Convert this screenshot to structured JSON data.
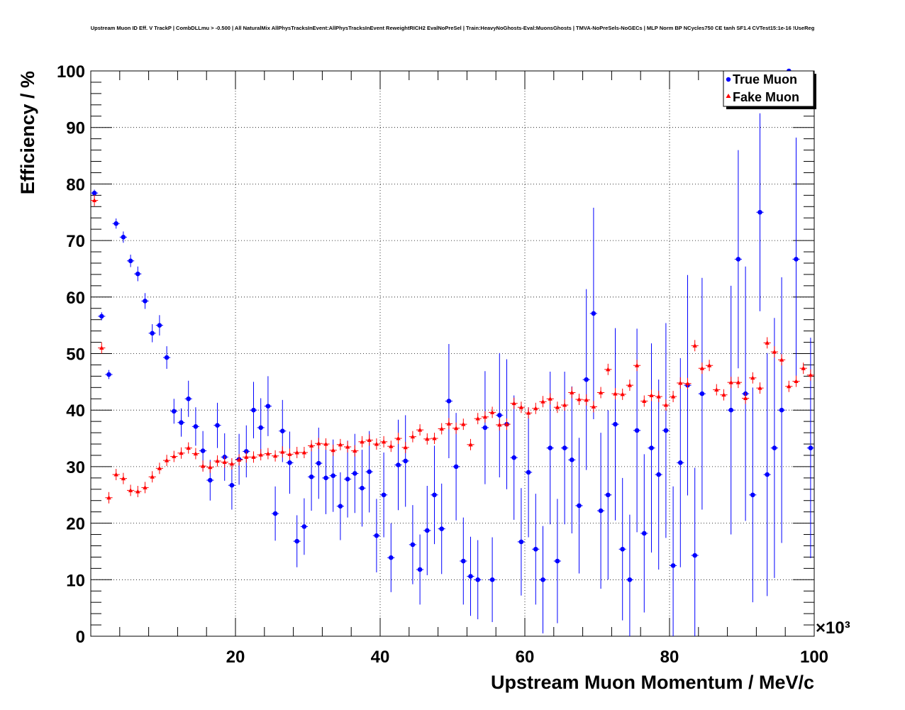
{
  "colors": {
    "true_muon": "#0000ff",
    "fake_muon": "#ff0000",
    "background": "#ffffff",
    "axis": "#000000"
  },
  "chart_data": {
    "type": "scatter",
    "title": "Upstream Muon ID Eff. V TrackP | CombDLLmu > -0.500 | All NaturalMix AllPhysTracksInEvent:AllPhysTracksInEvent ReweightRICH2 EvalNoPreSel | Train:HeavyNoGhosts-Eval:MuonsGhosts | TMVA-NoPreSels-NoGECs | MLP Norm BP NCycles750 CE tanh SF1.4 CVTest15:1e-16 !UseReg",
    "xlabel": "Upstream Muon Momentum / MeV/c",
    "ylabel": "Efficiency / %",
    "x_multiplier": "×10³",
    "xlim": [
      0,
      100
    ],
    "ylim": [
      0,
      100
    ],
    "x_ticks": [
      20,
      40,
      60,
      80,
      100
    ],
    "y_ticks": [
      0,
      10,
      20,
      30,
      40,
      50,
      60,
      70,
      80,
      90,
      100
    ],
    "grid": true,
    "legend_position": "top-right",
    "series": [
      {
        "name": "True Muon",
        "marker": "circle",
        "color": "#0000ff",
        "x": [
          0.5,
          1.5,
          2.5,
          3.5,
          4.5,
          5.5,
          6.5,
          7.5,
          8.5,
          9.5,
          10.5,
          11.5,
          12.5,
          13.5,
          14.5,
          15.5,
          16.5,
          17.5,
          18.5,
          19.5,
          20.5,
          21.5,
          22.5,
          23.5,
          24.5,
          25.5,
          26.5,
          27.5,
          28.5,
          29.5,
          30.5,
          31.5,
          32.5,
          33.5,
          34.5,
          35.5,
          36.5,
          37.5,
          38.5,
          39.5,
          40.5,
          41.5,
          42.5,
          43.5,
          44.5,
          45.5,
          46.5,
          47.5,
          48.5,
          49.5,
          50.5,
          51.5,
          52.5,
          53.5,
          54.5,
          55.5,
          56.5,
          57.5,
          58.5,
          59.5,
          60.5,
          61.5,
          62.5,
          63.5,
          64.5,
          65.5,
          66.5,
          67.5,
          68.5,
          69.5,
          70.5,
          71.5,
          72.5,
          73.5,
          74.5,
          75.5,
          76.5,
          77.5,
          78.5,
          79.5,
          80.5,
          81.5,
          82.5,
          83.5,
          84.5,
          88.5,
          89.5,
          90.5,
          91.5,
          92.5,
          93.5,
          94.5,
          95.5,
          96.5,
          97.5,
          99.5
        ],
        "y": [
          78.4,
          56.6,
          46.3,
          73.0,
          70.6,
          66.4,
          64.1,
          59.3,
          53.6,
          55.0,
          49.3,
          39.8,
          37.8,
          42.0,
          37.1,
          32.8,
          27.6,
          37.3,
          31.7,
          26.7,
          31.3,
          32.7,
          40.0,
          36.9,
          40.7,
          21.7,
          36.3,
          30.7,
          16.8,
          19.4,
          28.2,
          30.6,
          28.0,
          28.4,
          23.0,
          27.8,
          28.8,
          26.2,
          29.1,
          17.8,
          25.0,
          13.9,
          30.3,
          31.0,
          16.2,
          11.8,
          18.7,
          25.0,
          19.0,
          41.6,
          30.0,
          13.3,
          10.6,
          10.0,
          36.9,
          10.0,
          39.1,
          37.5,
          31.6,
          16.7,
          29.0,
          15.4,
          10.0,
          33.3,
          13.3,
          33.3,
          31.2,
          23.1,
          45.4,
          57.1,
          22.2,
          25.0,
          37.5,
          15.4,
          10.0,
          36.4,
          18.2,
          33.3,
          28.6,
          36.4,
          12.5,
          30.7,
          44.4,
          14.3,
          42.9,
          40.0,
          66.7,
          42.9,
          25.0,
          75.0,
          28.6,
          33.3,
          40.0,
          100.0,
          66.7,
          33.3
        ],
        "y_err": [
          0.6,
          0.7,
          0.8,
          0.9,
          1.0,
          1.1,
          1.3,
          1.4,
          1.6,
          1.8,
          2.0,
          2.2,
          2.5,
          3.2,
          3.4,
          3.5,
          3.6,
          4.0,
          4.2,
          4.3,
          4.5,
          4.6,
          5.0,
          5.2,
          5.3,
          4.8,
          5.5,
          5.5,
          4.6,
          5.0,
          6.0,
          6.3,
          6.4,
          6.4,
          6.0,
          6.8,
          7.0,
          6.8,
          7.2,
          6.5,
          7.5,
          6.1,
          8.0,
          8.1,
          7.0,
          6.2,
          7.9,
          8.7,
          8.0,
          10.1,
          9.5,
          7.7,
          7.0,
          7.0,
          10.0,
          7.5,
          11.0,
          11.5,
          11.0,
          9.5,
          11.5,
          9.8,
          9.5,
          13.5,
          11.0,
          13.5,
          13.0,
          12.0,
          16.0,
          18.7,
          13.8,
          15.0,
          17.0,
          12.6,
          11.5,
          18.0,
          14.0,
          18.5,
          16.8,
          19.0,
          14.0,
          18.5,
          19.5,
          15.5,
          20.5,
          22.0,
          19.3,
          22.5,
          19.0,
          17.5,
          21.5,
          23.0,
          23.5,
          0.5,
          21.5,
          19.5
        ]
      },
      {
        "name": "Fake Muon",
        "marker": "triangle",
        "color": "#ff0000",
        "x": [
          0.5,
          1.5,
          2.5,
          3.5,
          4.5,
          5.5,
          6.5,
          7.5,
          8.5,
          9.5,
          10.5,
          11.5,
          12.5,
          13.5,
          14.5,
          15.5,
          16.5,
          17.5,
          18.5,
          19.5,
          20.5,
          21.5,
          22.5,
          23.5,
          24.5,
          25.5,
          26.5,
          27.5,
          28.5,
          29.5,
          30.5,
          31.5,
          32.5,
          33.5,
          34.5,
          35.5,
          36.5,
          37.5,
          38.5,
          39.5,
          40.5,
          41.5,
          42.5,
          43.5,
          44.5,
          45.5,
          46.5,
          47.5,
          48.5,
          49.5,
          50.5,
          51.5,
          52.5,
          53.5,
          54.5,
          55.5,
          56.5,
          57.5,
          58.5,
          59.5,
          60.5,
          61.5,
          62.5,
          63.5,
          64.5,
          65.5,
          66.5,
          67.5,
          68.5,
          69.5,
          70.5,
          71.5,
          72.5,
          73.5,
          74.5,
          75.5,
          76.5,
          77.5,
          78.5,
          79.5,
          80.5,
          81.5,
          82.5,
          83.5,
          84.5,
          85.5,
          86.5,
          87.5,
          88.5,
          89.5,
          90.5,
          91.5,
          92.5,
          93.5,
          94.5,
          95.5,
          96.5,
          97.5,
          98.5,
          99.5
        ],
        "y": [
          77.1,
          51.0,
          24.5,
          28.6,
          27.9,
          25.8,
          25.6,
          26.3,
          28.2,
          29.7,
          31.1,
          31.8,
          32.4,
          33.3,
          32.3,
          30.1,
          29.9,
          31.0,
          30.8,
          30.5,
          31.2,
          31.7,
          31.7,
          32.1,
          32.3,
          31.9,
          32.6,
          32.2,
          32.5,
          32.5,
          33.7,
          34.1,
          34.0,
          32.9,
          33.9,
          33.5,
          32.8,
          34.4,
          34.7,
          34.0,
          34.4,
          33.6,
          35.0,
          33.4,
          35.3,
          36.5,
          34.9,
          35.0,
          36.7,
          37.6,
          36.8,
          37.5,
          33.9,
          38.5,
          38.8,
          39.6,
          37.4,
          37.5,
          41.2,
          40.5,
          39.5,
          40.3,
          41.5,
          42.0,
          40.5,
          40.9,
          43.1,
          41.9,
          41.8,
          40.6,
          43.1,
          47.2,
          42.9,
          42.8,
          44.4,
          47.9,
          41.6,
          42.6,
          42.4,
          40.9,
          42.4,
          44.8,
          44.7,
          51.4,
          47.4,
          47.9,
          43.6,
          42.7,
          44.9,
          44.9,
          42.1,
          45.7,
          43.9,
          51.9,
          50.3,
          48.9,
          44.2,
          45.1,
          47.4,
          46.2
        ]
      }
    ]
  }
}
